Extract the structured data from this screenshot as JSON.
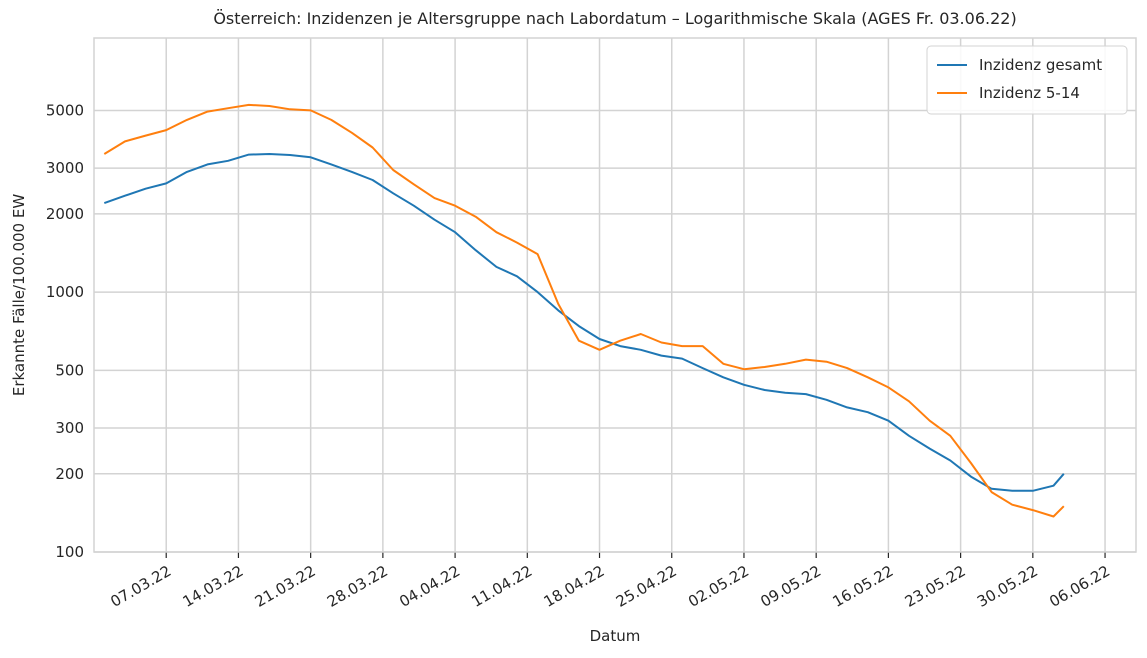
{
  "chart_data": {
    "type": "line",
    "title": "Österreich: Inzidenzen je Altersgruppe nach Labordatum – Logarithmische Skala (AGES Fr. 03.06.22)",
    "x_label": "Datum",
    "y_label": "Erkannte Fälle/100.000 EW",
    "log_y": true,
    "grid": true,
    "legend": "upper right",
    "x": [
      "01.03.22",
      "03.03.22",
      "05.03.22",
      "07.03.22",
      "09.03.22",
      "11.03.22",
      "13.03.22",
      "15.03.22",
      "17.03.22",
      "19.03.22",
      "21.03.22",
      "23.03.22",
      "25.03.22",
      "27.03.22",
      "29.03.22",
      "31.03.22",
      "02.04.22",
      "04.04.22",
      "06.04.22",
      "08.04.22",
      "10.04.22",
      "12.04.22",
      "14.04.22",
      "16.04.22",
      "18.04.22",
      "20.04.22",
      "22.04.22",
      "24.04.22",
      "26.04.22",
      "28.04.22",
      "30.04.22",
      "02.05.22",
      "04.05.22",
      "06.05.22",
      "08.05.22",
      "10.05.22",
      "12.05.22",
      "14.05.22",
      "16.05.22",
      "18.05.22",
      "20.05.22",
      "22.05.22",
      "24.05.22",
      "26.05.22",
      "28.05.22",
      "30.05.22",
      "01.06.22",
      "02.06.22"
    ],
    "series": [
      {
        "name": "Inzidenz gesamt",
        "color": "#1f77b4",
        "values": [
          2200,
          2350,
          2500,
          2620,
          2900,
          3100,
          3200,
          3380,
          3400,
          3370,
          3300,
          3100,
          2900,
          2700,
          2400,
          2150,
          1900,
          1700,
          1450,
          1250,
          1150,
          1000,
          850,
          740,
          660,
          620,
          600,
          570,
          555,
          510,
          470,
          440,
          420,
          410,
          405,
          385,
          360,
          345,
          320,
          280,
          250,
          225,
          195,
          175,
          172,
          172,
          180,
          200
        ]
      },
      {
        "name": "Inzidenz 5-14",
        "color": "#ff7f0e",
        "values": [
          3400,
          3800,
          4000,
          4200,
          4600,
          4950,
          5100,
          5250,
          5200,
          5050,
          5000,
          4600,
          4100,
          3600,
          2950,
          2600,
          2300,
          2150,
          1950,
          1700,
          1550,
          1400,
          900,
          650,
          600,
          650,
          690,
          640,
          620,
          620,
          530,
          505,
          515,
          530,
          550,
          540,
          510,
          470,
          430,
          380,
          320,
          280,
          220,
          170,
          152,
          145,
          137,
          150
        ]
      }
    ],
    "xlim": [
      "28.02.22",
      "09.06.22"
    ],
    "xticks": [
      "07.03.22",
      "14.03.22",
      "21.03.22",
      "28.03.22",
      "04.04.22",
      "11.04.22",
      "18.04.22",
      "25.04.22",
      "02.05.22",
      "09.05.22",
      "16.05.22",
      "23.05.22",
      "30.05.22",
      "06.06.22"
    ],
    "ylim": [
      100,
      9500
    ],
    "yticks": [
      100,
      200,
      300,
      500,
      1000,
      2000,
      3000,
      5000
    ]
  }
}
